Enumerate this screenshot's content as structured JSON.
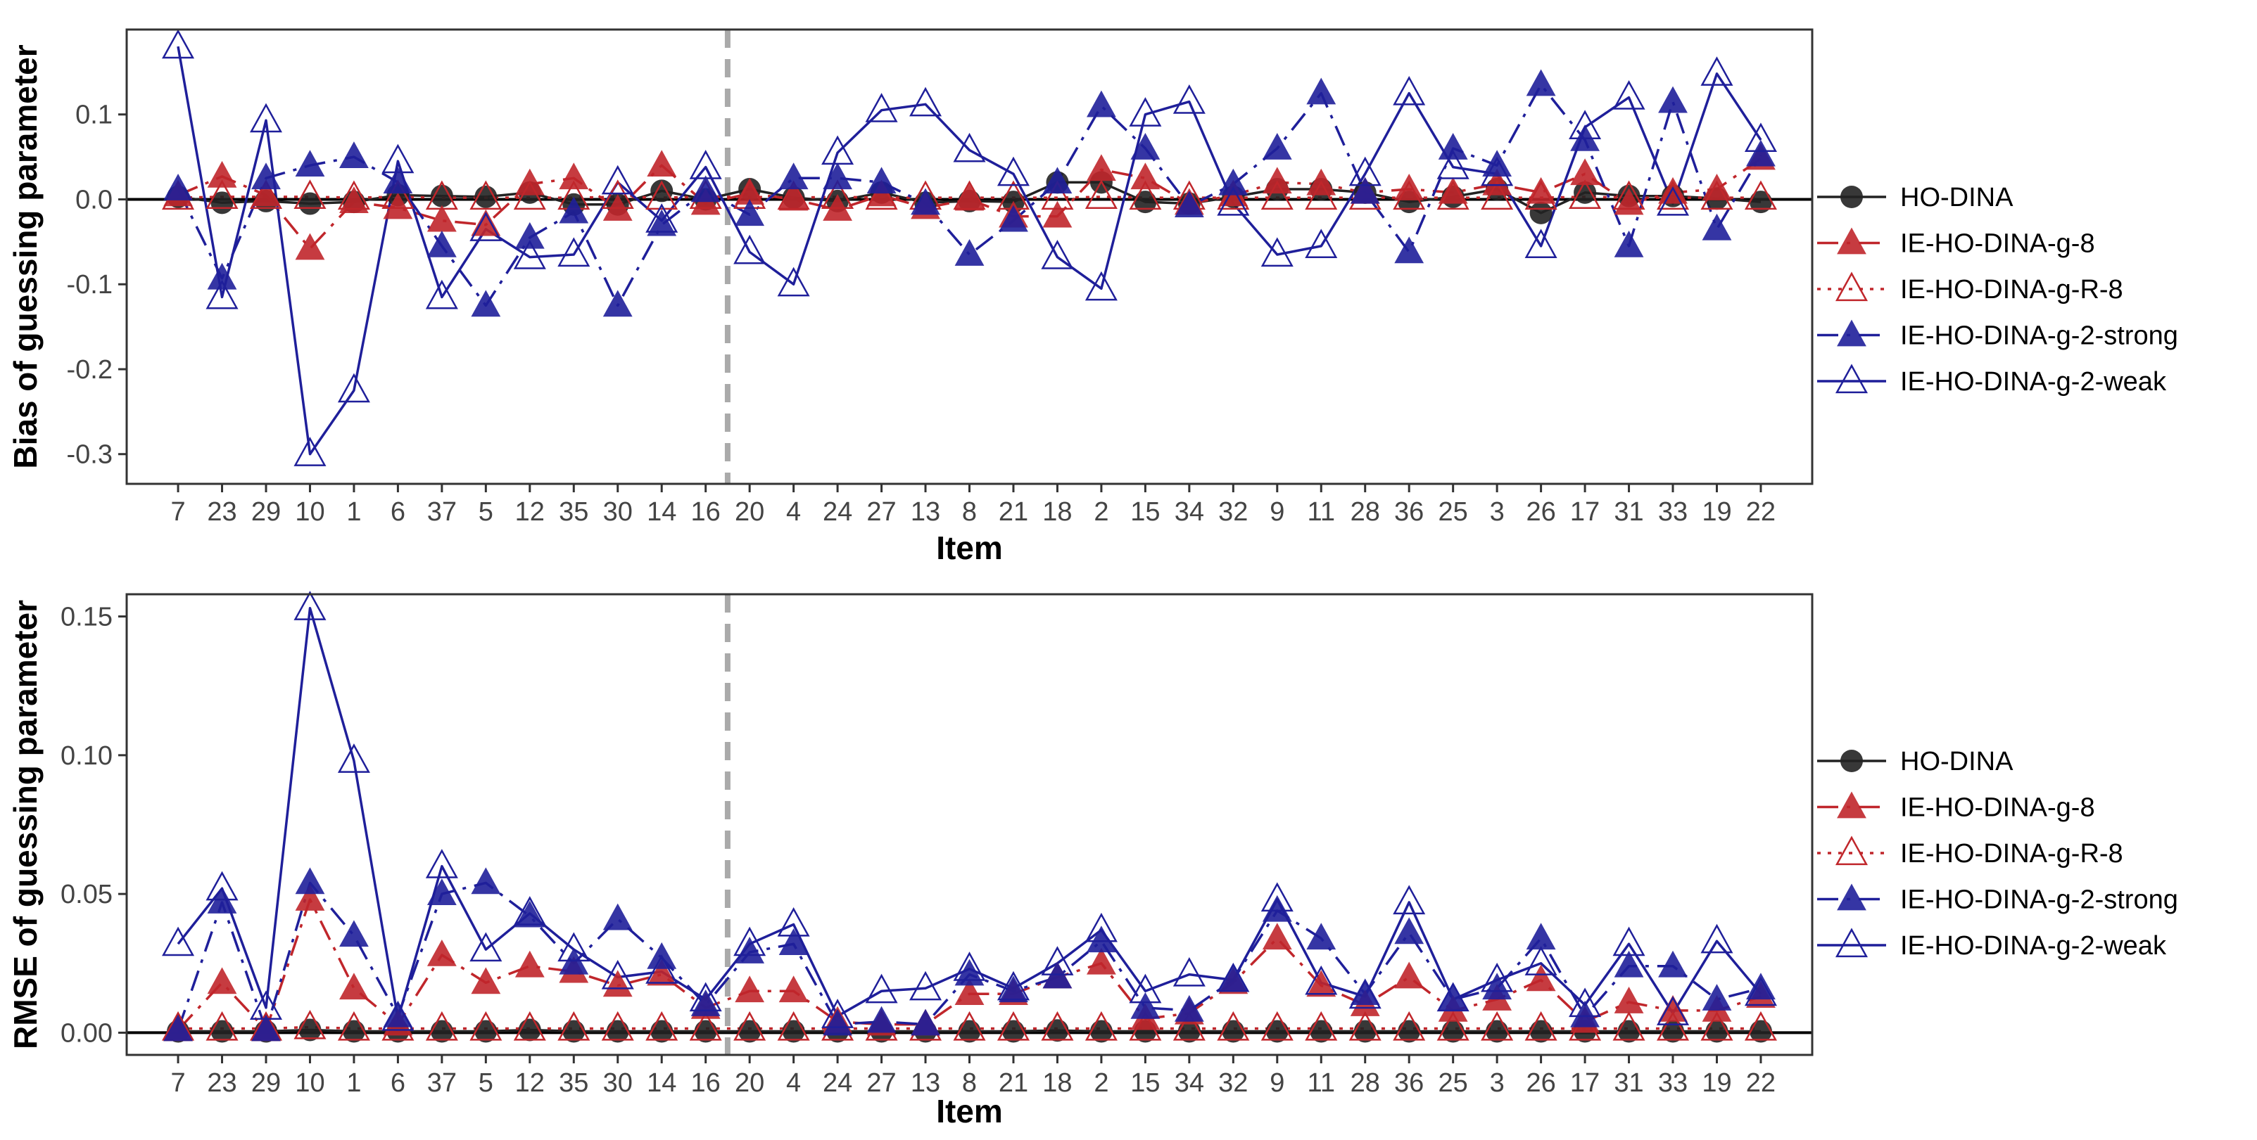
{
  "chart_data": [
    {
      "type": "line",
      "ylabel": "Bias of guessing parameter",
      "xlabel": "Item",
      "ylim": [
        -0.335,
        0.2
      ],
      "yticks": [
        0.1,
        0.0,
        -0.1,
        -0.2,
        -0.3
      ],
      "ytick_labels": [
        "0.1",
        "0.0",
        "-0.1",
        "-0.2",
        "-0.3"
      ],
      "divider_after_index": 12,
      "reference_line": 0,
      "categories": [
        "7",
        "23",
        "29",
        "10",
        "1",
        "6",
        "37",
        "5",
        "12",
        "35",
        "30",
        "14",
        "16",
        "20",
        "4",
        "24",
        "27",
        "13",
        "8",
        "21",
        "18",
        "2",
        "15",
        "34",
        "32",
        "9",
        "11",
        "28",
        "36",
        "25",
        "3",
        "26",
        "17",
        "31",
        "33",
        "19",
        "22"
      ],
      "series": [
        {
          "name": "HO-DINA",
          "color": "#222222",
          "marker": "circle",
          "filled": true,
          "dash": "solid",
          "values": [
            0.003,
            -0.004,
            -0.002,
            -0.005,
            -0.003,
            0.005,
            0.004,
            0.003,
            0.008,
            -0.006,
            -0.006,
            0.01,
            0.0,
            0.012,
            0.002,
            -0.002,
            0.008,
            -0.004,
            -0.002,
            -0.003,
            0.02,
            0.02,
            -0.003,
            -0.005,
            0.003,
            0.012,
            0.012,
            0.008,
            -0.003,
            0.003,
            0.012,
            -0.016,
            0.008,
            0.004,
            0.004,
            0.001,
            -0.003
          ]
        },
        {
          "name": "IE-HO-DINA-g-8",
          "color": "#c0262b",
          "marker": "triangle",
          "filled": true,
          "dash": "dotdash",
          "values": [
            0.005,
            0.027,
            0.005,
            -0.058,
            -0.003,
            -0.01,
            -0.025,
            -0.03,
            0.018,
            0.025,
            -0.012,
            0.04,
            -0.005,
            0.007,
            0.0,
            -0.012,
            0.005,
            -0.01,
            0.0,
            -0.02,
            -0.02,
            0.035,
            0.025,
            -0.005,
            0.005,
            0.02,
            0.018,
            0.008,
            0.012,
            0.008,
            0.018,
            0.008,
            0.03,
            -0.005,
            0.008,
            0.012,
            0.048
          ]
        },
        {
          "name": "IE-HO-DINA-g-R-8",
          "color": "#c0262b",
          "marker": "triangle",
          "filled": false,
          "dash": "dotted",
          "values": [
            0.002,
            0.003,
            0.003,
            0.003,
            0.002,
            0.003,
            0.002,
            0.002,
            0.002,
            0.002,
            0.003,
            0.002,
            0.003,
            0.003,
            0.002,
            0.003,
            0.002,
            0.002,
            0.002,
            0.002,
            0.002,
            0.003,
            0.002,
            0.002,
            0.002,
            0.002,
            0.002,
            0.002,
            0.002,
            0.002,
            0.002,
            0.002,
            0.003,
            0.002,
            0.002,
            0.002,
            0.002
          ]
        },
        {
          "name": "IE-HO-DINA-g-2-strong",
          "color": "#1f1f9a",
          "marker": "triangle",
          "filled": true,
          "dash": "dotdash",
          "values": [
            0.012,
            -0.093,
            0.025,
            0.04,
            0.05,
            0.02,
            -0.055,
            -0.125,
            -0.045,
            -0.015,
            -0.125,
            -0.03,
            0.01,
            -0.018,
            0.025,
            0.025,
            0.02,
            -0.005,
            -0.065,
            -0.025,
            0.02,
            0.11,
            0.06,
            -0.008,
            0.018,
            0.06,
            0.125,
            0.008,
            -0.062,
            0.06,
            0.04,
            0.135,
            0.07,
            -0.055,
            0.115,
            -0.035,
            0.052
          ]
        },
        {
          "name": "IE-HO-DINA-g-2-weak",
          "color": "#1f1f9a",
          "marker": "triangle",
          "filled": false,
          "dash": "solid",
          "values": [
            0.18,
            -0.115,
            0.093,
            -0.3,
            -0.225,
            0.045,
            -0.115,
            -0.035,
            -0.068,
            -0.065,
            0.02,
            -0.025,
            0.038,
            -0.062,
            -0.1,
            0.055,
            0.105,
            0.112,
            0.058,
            0.03,
            -0.068,
            -0.105,
            0.1,
            0.115,
            -0.005,
            -0.065,
            -0.055,
            0.03,
            0.125,
            0.038,
            0.03,
            -0.055,
            0.085,
            0.12,
            -0.005,
            0.148,
            0.07
          ]
        }
      ]
    },
    {
      "type": "line",
      "ylabel": "RMSE of guessing parameter",
      "xlabel": "Item",
      "ylim": [
        -0.008,
        0.158
      ],
      "yticks": [
        0.15,
        0.1,
        0.05,
        0.0
      ],
      "ytick_labels": [
        "0.15",
        "0.10",
        "0.05",
        "0.00"
      ],
      "divider_after_index": 12,
      "reference_line": 0,
      "categories": [
        "7",
        "23",
        "29",
        "10",
        "1",
        "6",
        "37",
        "5",
        "12",
        "35",
        "30",
        "14",
        "16",
        "20",
        "4",
        "24",
        "27",
        "13",
        "8",
        "21",
        "18",
        "2",
        "15",
        "34",
        "32",
        "9",
        "11",
        "28",
        "36",
        "25",
        "3",
        "26",
        "17",
        "31",
        "33",
        "19",
        "22"
      ],
      "series": [
        {
          "name": "HO-DINA",
          "color": "#222222",
          "marker": "circle",
          "filled": true,
          "dash": "solid",
          "values": [
            0.0005,
            0.0005,
            0.0005,
            0.001,
            0.0005,
            0.0005,
            0.0005,
            0.0005,
            0.001,
            0.0005,
            0.0005,
            0.0005,
            0.0005,
            0.0005,
            0.0005,
            0.0005,
            0.0005,
            0.0005,
            0.0005,
            0.0005,
            0.0008,
            0.0005,
            0.0005,
            0.0005,
            0.0005,
            0.0005,
            0.0005,
            0.0005,
            0.0005,
            0.0005,
            0.0005,
            0.0005,
            0.0005,
            0.0005,
            0.0005,
            0.0005,
            0.0005
          ]
        },
        {
          "name": "IE-HO-DINA-g-8",
          "color": "#c0262b",
          "marker": "triangle",
          "filled": true,
          "dash": "dotdash",
          "values": [
            0.001,
            0.018,
            0.001,
            0.048,
            0.016,
            0.003,
            0.028,
            0.018,
            0.024,
            0.022,
            0.017,
            0.021,
            0.009,
            0.015,
            0.015,
            0.004,
            0.003,
            0.003,
            0.014,
            0.014,
            0.02,
            0.025,
            0.005,
            0.007,
            0.018,
            0.034,
            0.017,
            0.01,
            0.02,
            0.008,
            0.012,
            0.019,
            0.004,
            0.011,
            0.008,
            0.008,
            0.013
          ]
        },
        {
          "name": "IE-HO-DINA-g-R-8",
          "color": "#c0262b",
          "marker": "triangle",
          "filled": false,
          "dash": "dotted",
          "values": [
            0.0015,
            0.0015,
            0.0015,
            0.002,
            0.0015,
            0.0015,
            0.0015,
            0.0015,
            0.0015,
            0.0015,
            0.0015,
            0.0015,
            0.0015,
            0.0015,
            0.0015,
            0.0015,
            0.0015,
            0.0015,
            0.0015,
            0.0015,
            0.0015,
            0.0015,
            0.0015,
            0.0015,
            0.0015,
            0.0015,
            0.0015,
            0.0015,
            0.0015,
            0.0015,
            0.0015,
            0.0015,
            0.0015,
            0.0015,
            0.0015,
            0.0015,
            0.0015
          ]
        },
        {
          "name": "IE-HO-DINA-g-2-strong",
          "color": "#1f1f9a",
          "marker": "triangle",
          "filled": true,
          "dash": "dotdash",
          "values": [
            0.001,
            0.047,
            0.001,
            0.054,
            0.035,
            0.006,
            0.05,
            0.054,
            0.042,
            0.025,
            0.041,
            0.027,
            0.01,
            0.029,
            0.032,
            0.003,
            0.004,
            0.003,
            0.021,
            0.015,
            0.02,
            0.033,
            0.009,
            0.008,
            0.019,
            0.044,
            0.034,
            0.014,
            0.036,
            0.012,
            0.016,
            0.034,
            0.006,
            0.024,
            0.024,
            0.012,
            0.016
          ]
        },
        {
          "name": "IE-HO-DINA-g-2-weak",
          "color": "#1f1f9a",
          "marker": "triangle",
          "filled": false,
          "dash": "solid",
          "values": [
            0.032,
            0.052,
            0.009,
            0.153,
            0.098,
            0.005,
            0.06,
            0.03,
            0.043,
            0.03,
            0.02,
            0.022,
            0.012,
            0.032,
            0.039,
            0.006,
            0.015,
            0.016,
            0.023,
            0.016,
            0.025,
            0.037,
            0.015,
            0.021,
            0.019,
            0.048,
            0.018,
            0.013,
            0.047,
            0.012,
            0.019,
            0.025,
            0.01,
            0.032,
            0.007,
            0.033,
            0.014
          ]
        }
      ]
    }
  ]
}
